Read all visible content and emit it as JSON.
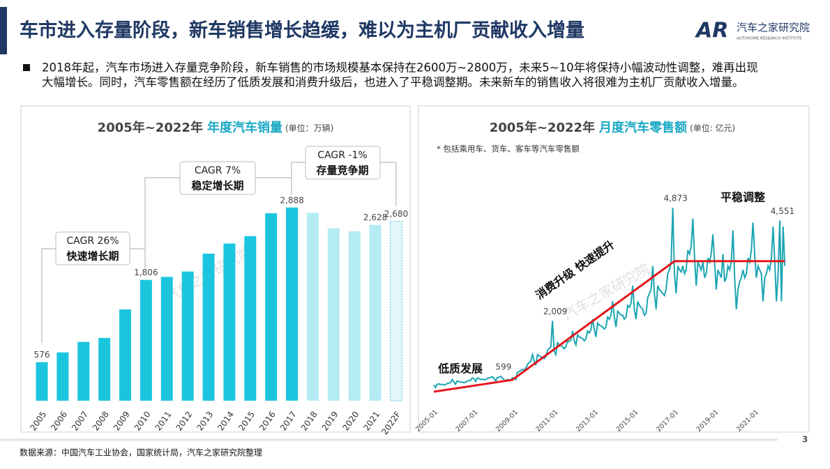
{
  "header": {
    "title": "车市进入存量阶段，新车销售增长趋缓，难以为主机厂贡献收入增量",
    "logo_mark": "AR",
    "logo_name": "汽车之家研究院",
    "logo_subtitle": "AUTOHOME RESEARCH INSTITUTE"
  },
  "bullet_lines": [
    "2018年起，汽车市场进入存量竞争阶段，新车销售的市场规模基本保持在2600万~2800万，未来5~10年将保持小幅波动性调整，难再出现",
    "大幅增长。同时，汽车零售额在经历了低质发展和消费升级后，也进入了平稳调整期。未来新车的销售收入将很难为主机厂贡献收入增量。"
  ],
  "watermark": "汽车之家研究院",
  "chart_data": [
    {
      "type": "bar",
      "title": "2005年~2022年",
      "title_highlight": "年度汽车销量",
      "unit": "(单位：万辆)",
      "categories": [
        "2005",
        "2006",
        "2007",
        "2008",
        "2009",
        "2010",
        "2011",
        "2012",
        "2013",
        "2014",
        "2015",
        "2016",
        "2017",
        "2018",
        "2019",
        "2020",
        "2021",
        "2022F"
      ],
      "values": [
        576,
        722,
        879,
        938,
        1364,
        1806,
        1851,
        1931,
        2198,
        2349,
        2460,
        2803,
        2888,
        2808,
        2577,
        2531,
        2628,
        2680
      ],
      "value_labels": [
        "576",
        null,
        null,
        null,
        null,
        "1,806",
        null,
        null,
        null,
        null,
        null,
        null,
        "2,888",
        null,
        null,
        null,
        "2,628",
        "2,680"
      ],
      "colors": [
        "#1cc5de",
        "#1cc5de",
        "#1cc5de",
        "#1cc5de",
        "#1cc5de",
        "#1cc5de",
        "#1cc5de",
        "#1cc5de",
        "#1cc5de",
        "#1cc5de",
        "#1cc5de",
        "#1cc5de",
        "#1cc5de",
        "#b4ebf4",
        "#b4ebf4",
        "#b4ebf4",
        "#b4ebf4",
        "#e2f7fb"
      ],
      "dashed": [
        false,
        false,
        false,
        false,
        false,
        false,
        false,
        false,
        false,
        false,
        false,
        false,
        false,
        false,
        false,
        false,
        false,
        true
      ],
      "annotations": [
        {
          "cagr": "CAGR 26%",
          "label": "快速增长期"
        },
        {
          "cagr": "CAGR 7%",
          "label": "稳定增长期"
        },
        {
          "cagr": "CAGR -1%",
          "label": "存量竞争期"
        }
      ]
    },
    {
      "type": "line",
      "title": "2005年~2022年",
      "title_highlight": "月度汽车零售额",
      "unit": "(单位: 亿元)",
      "note": "* 包括乘用车、货车、客车等汽车零售额",
      "color": "#1ba5b2",
      "x": [
        "2005-01",
        "2005-02",
        "2005-03",
        "2005-04",
        "2005-05",
        "2005-06",
        "2005-07",
        "2005-08",
        "2005-09",
        "2005-10",
        "2005-11",
        "2005-12",
        "2006-01",
        "2006-02",
        "2006-03",
        "2006-04",
        "2006-05",
        "2006-06",
        "2006-07",
        "2006-08",
        "2006-09",
        "2006-10",
        "2006-11",
        "2006-12",
        "2007-01",
        "2007-02",
        "2007-03",
        "2007-04",
        "2007-05",
        "2007-06",
        "2007-07",
        "2007-08",
        "2007-09",
        "2007-10",
        "2007-11",
        "2007-12",
        "2008-01",
        "2008-02",
        "2008-03",
        "2008-04",
        "2008-05",
        "2008-06",
        "2008-07",
        "2008-08",
        "2008-09",
        "2008-10",
        "2008-11",
        "2008-12",
        "2009-01",
        "2009-02",
        "2009-03",
        "2009-04",
        "2009-05",
        "2009-06",
        "2009-07",
        "2009-08",
        "2009-09",
        "2009-10",
        "2009-11",
        "2009-12",
        "2010-01",
        "2010-02",
        "2010-03",
        "2010-04",
        "2010-05",
        "2010-06",
        "2010-07",
        "2010-08",
        "2010-09",
        "2010-10",
        "2010-11",
        "2010-12",
        "2011-01",
        "2011-02",
        "2011-03",
        "2011-04",
        "2011-05",
        "2011-06",
        "2011-07",
        "2011-08",
        "2011-09",
        "2011-10",
        "2011-11",
        "2011-12",
        "2012-01",
        "2012-02",
        "2012-03",
        "2012-04",
        "2012-05",
        "2012-06",
        "2012-07",
        "2012-08",
        "2012-09",
        "2012-10",
        "2012-11",
        "2012-12",
        "2013-01",
        "2013-02",
        "2013-03",
        "2013-04",
        "2013-05",
        "2013-06",
        "2013-07",
        "2013-08",
        "2013-09",
        "2013-10",
        "2013-11",
        "2013-12",
        "2014-01",
        "2014-02",
        "2014-03",
        "2014-04",
        "2014-05",
        "2014-06",
        "2014-07",
        "2014-08",
        "2014-09",
        "2014-10",
        "2014-11",
        "2014-12",
        "2015-01",
        "2015-02",
        "2015-03",
        "2015-04",
        "2015-05",
        "2015-06",
        "2015-07",
        "2015-08",
        "2015-09",
        "2015-10",
        "2015-11",
        "2015-12",
        "2016-01",
        "2016-02",
        "2016-03",
        "2016-04",
        "2016-05",
        "2016-06",
        "2016-07",
        "2016-08",
        "2016-09",
        "2016-10",
        "2016-11",
        "2016-12",
        "2017-01",
        "2017-02",
        "2017-03",
        "2017-04",
        "2017-05",
        "2017-06",
        "2017-07",
        "2017-08",
        "2017-09",
        "2017-10",
        "2017-11",
        "2017-12",
        "2018-01",
        "2018-02",
        "2018-03",
        "2018-04",
        "2018-05",
        "2018-06",
        "2018-07",
        "2018-08",
        "2018-09",
        "2018-10",
        "2018-11",
        "2018-12",
        "2019-01",
        "2019-02",
        "2019-03",
        "2019-04",
        "2019-05",
        "2019-06",
        "2019-07",
        "2019-08",
        "2019-09",
        "2019-10",
        "2019-11",
        "2019-12",
        "2020-01",
        "2020-02",
        "2020-03",
        "2020-04",
        "2020-05",
        "2020-06",
        "2020-07",
        "2020-08",
        "2020-09",
        "2020-10",
        "2020-11",
        "2020-12",
        "2021-01",
        "2021-02",
        "2021-03",
        "2021-04",
        "2021-05",
        "2021-06",
        "2021-07",
        "2021-08",
        "2021-09",
        "2021-10",
        "2021-11",
        "2021-12",
        "2022-01",
        "2022-02",
        "2022-03",
        "2022-04",
        "2022-05",
        "2022-06",
        "2022-07"
      ],
      "values": [
        380,
        320,
        400,
        410,
        390,
        400,
        380,
        390,
        420,
        430,
        440,
        520,
        460,
        400,
        480,
        470,
        450,
        460,
        440,
        450,
        480,
        490,
        500,
        560,
        540,
        470,
        560,
        540,
        520,
        530,
        510,
        520,
        550,
        560,
        570,
        590,
        550,
        480,
        570,
        575,
        599,
        560,
        510,
        490,
        520,
        510,
        500,
        560,
        560,
        520,
        700,
        720,
        740,
        780,
        760,
        800,
        900,
        950,
        980,
        1150,
        1000,
        880,
        1150,
        1120,
        1100,
        1080,
        1050,
        1100,
        1250,
        1300,
        1350,
        2009,
        1250,
        1150,
        1450,
        1400,
        1380,
        1350,
        1300,
        1350,
        1500,
        1480,
        1520,
        1750,
        1500,
        1400,
        1650,
        1600,
        1580,
        1560,
        1500,
        1550,
        1750,
        1700,
        1780,
        2050,
        1800,
        1600,
        1950,
        1900,
        1880,
        1850,
        1800,
        1850,
        2100,
        2050,
        2150,
        2500,
        2100,
        1850,
        2250,
        2200,
        2150,
        2150,
        2050,
        2100,
        2400,
        2350,
        2450,
        2900,
        2300,
        2050,
        2500,
        2400,
        2350,
        2300,
        2150,
        2200,
        2600,
        2700,
        2800,
        3400,
        2700,
        2300,
        2900,
        2800,
        2750,
        2700,
        2650,
        2800,
        3200,
        3300,
        3500,
        4873,
        3200,
        2700,
        3400,
        3300,
        3250,
        3400,
        3200,
        3300,
        3800,
        3700,
        3900,
        4600,
        3600,
        2900,
        3500,
        3400,
        3300,
        3500,
        3100,
        3200,
        3600,
        3500,
        3700,
        4200,
        3500,
        2800,
        3300,
        3200,
        3100,
        3700,
        3000,
        3100,
        3400,
        3300,
        3500,
        4300,
        3100,
        2300,
        2800,
        3000,
        3100,
        3300,
        3100,
        3200,
        3600,
        3500,
        3800,
        4500,
        3700,
        3100,
        3400,
        3300,
        3200,
        2500,
        3100,
        3200,
        3400,
        3300,
        3600,
        4400,
        3500,
        2500,
        3200,
        4551,
        2500,
        4400,
        3400
      ],
      "value_labels": [
        null,
        null,
        null,
        null,
        null,
        null,
        null,
        null,
        null,
        null,
        null,
        null,
        null,
        null,
        null,
        null,
        null,
        null,
        null,
        null,
        null,
        null,
        null,
        null,
        null,
        null,
        null,
        null,
        null,
        null,
        null,
        null,
        null,
        null,
        null,
        null,
        null,
        null,
        null,
        null,
        "599",
        null,
        null,
        null,
        null,
        null,
        null,
        null,
        null,
        null,
        null,
        null,
        null,
        null,
        null,
        null,
        null,
        null,
        null,
        null,
        null,
        null,
        null,
        null,
        null,
        null,
        null,
        null,
        null,
        null,
        null,
        "2,009",
        null,
        null,
        null,
        null,
        null,
        null,
        null,
        null,
        null,
        null,
        null,
        null,
        null,
        null,
        null,
        null,
        null,
        null,
        null,
        null,
        null,
        null,
        null,
        null,
        null,
        null,
        null,
        null,
        null,
        null,
        null,
        null,
        null,
        null,
        null,
        null,
        null,
        null,
        null,
        null,
        null,
        null,
        null,
        null,
        null,
        null,
        null,
        null,
        null,
        null,
        null,
        null,
        null,
        null,
        null,
        null,
        null,
        null,
        null,
        null,
        null,
        null,
        null,
        null,
        null,
        null,
        null,
        null,
        null,
        null,
        null,
        "4,873",
        null,
        null,
        null,
        null,
        null,
        null,
        null,
        null,
        null,
        null,
        null,
        null,
        null,
        null,
        null,
        null,
        null,
        null,
        null,
        null,
        null,
        null,
        null,
        null,
        null,
        null,
        null,
        null,
        null,
        null,
        null,
        null,
        null,
        null,
        null,
        null,
        null,
        null,
        null,
        null,
        null,
        null,
        null,
        null,
        null,
        null,
        null,
        null,
        null,
        null,
        null,
        null,
        null,
        null,
        null,
        null,
        null,
        null,
        null,
        null,
        null,
        null,
        null,
        "4,551",
        null,
        null,
        null
      ],
      "xticks": [
        "2005-01",
        "2007-01",
        "2009-01",
        "2011-01",
        "2013-01",
        "2015-01",
        "2017-01",
        "2019-01",
        "2021-01"
      ],
      "trend": {
        "x": [
          "2005-01",
          "2008-12",
          "2017-01",
          "2022-07"
        ],
        "values": [
          210,
          510,
          3520,
          3520
        ],
        "color": "#e5171d"
      },
      "phase_labels": [
        "低质发展",
        "消费升级  快速提升",
        "平稳调整"
      ]
    }
  ],
  "footer": {
    "source": "数据来源：中国汽车工业协会，国家统计局，汽车之家研究院整理",
    "page": "3"
  }
}
